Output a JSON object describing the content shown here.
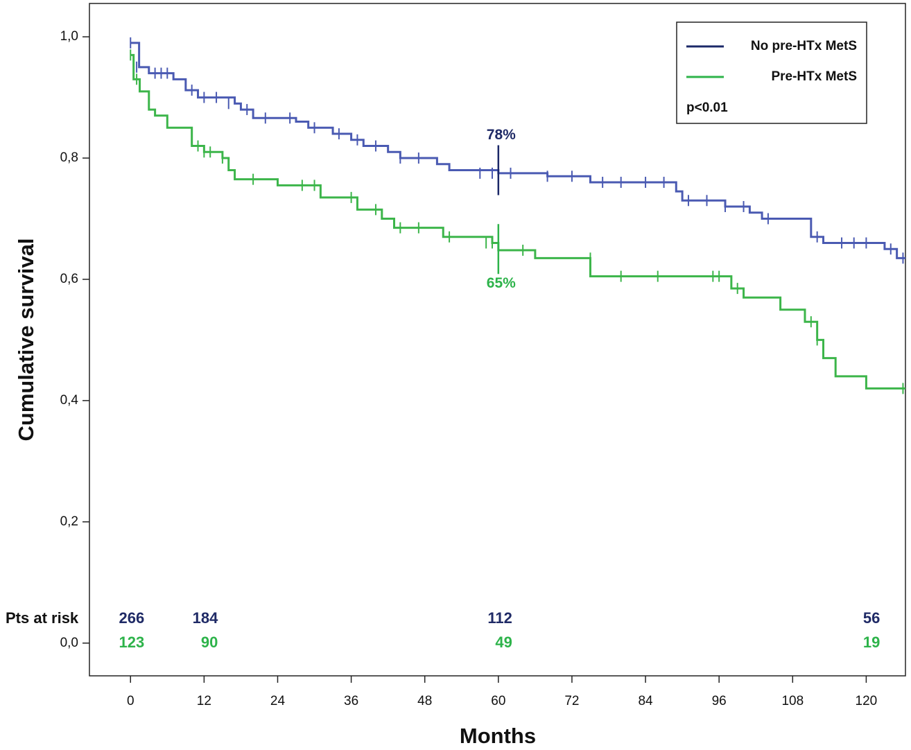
{
  "chart_data": {
    "type": "kaplan-meier",
    "x_label": "Months",
    "y_label": "Cumulative survival",
    "xlim": [
      -6.7,
      126.4
    ],
    "ylim": [
      -0.054,
      1.055
    ],
    "xticks": [
      0,
      12,
      24,
      36,
      48,
      60,
      72,
      84,
      96,
      108,
      120
    ],
    "yticks": [
      {
        "value": 0,
        "label": "0,0"
      },
      {
        "value": 0.2,
        "label": "0,2"
      },
      {
        "value": 0.4,
        "label": "0,4"
      },
      {
        "value": 0.6,
        "label": "0,6"
      },
      {
        "value": 0.8,
        "label": "0,8"
      },
      {
        "value": 1,
        "label": "1,0"
      }
    ],
    "legend": "upper right",
    "annotation": "p<0.01",
    "at_risk_label": "Pts at risk",
    "at_risk_x": [
      0,
      12,
      60,
      120
    ],
    "series": [
      {
        "name": "No pre-HTx MetS",
        "color": "#4a5ab2",
        "legend_color": "#1b2868",
        "text_color": "#1f2a66",
        "x": [
          0,
          1.4,
          3,
          7,
          9,
          11,
          17,
          18,
          20,
          27,
          29,
          33,
          36,
          38,
          42,
          44,
          50,
          52,
          60,
          68,
          75,
          89,
          90,
          97,
          101,
          103,
          111,
          113,
          123,
          125,
          126.4
        ],
        "values": [
          0.99,
          0.95,
          0.94,
          0.93,
          0.912,
          0.9,
          0.89,
          0.88,
          0.866,
          0.86,
          0.85,
          0.84,
          0.83,
          0.82,
          0.81,
          0.8,
          0.79,
          0.78,
          0.775,
          0.77,
          0.76,
          0.745,
          0.73,
          0.72,
          0.71,
          0.7,
          0.67,
          0.66,
          0.65,
          0.635,
          0.635
        ],
        "censor_x": [
          0,
          1,
          4,
          5,
          6,
          10,
          12,
          14,
          16,
          19,
          22,
          26,
          30,
          34,
          37,
          40,
          44,
          47,
          57,
          59,
          62,
          68,
          72,
          77,
          80,
          84,
          87,
          91,
          94,
          97,
          100,
          104,
          112,
          116,
          118,
          120,
          124,
          126
        ],
        "censor_y": [
          0.99,
          0.95,
          0.94,
          0.94,
          0.94,
          0.912,
          0.9,
          0.9,
          0.89,
          0.88,
          0.866,
          0.866,
          0.85,
          0.84,
          0.83,
          0.82,
          0.8,
          0.8,
          0.775,
          0.775,
          0.775,
          0.77,
          0.77,
          0.76,
          0.76,
          0.76,
          0.76,
          0.73,
          0.73,
          0.72,
          0.72,
          0.7,
          0.67,
          0.66,
          0.66,
          0.66,
          0.65,
          0.635
        ],
        "landmark": {
          "x": 60,
          "value": 0.78,
          "label": "78%"
        },
        "at_risk": [
          266,
          184,
          112,
          56
        ]
      },
      {
        "name": "Pre-HTx MetS",
        "color": "#3cb54a",
        "legend_color": "#2db34a",
        "text_color": "#2db34a",
        "x": [
          0,
          0.5,
          1.5,
          3,
          4,
          6,
          10,
          12,
          15,
          16,
          17,
          24,
          31,
          37,
          41,
          43,
          51,
          59,
          60,
          66,
          75,
          98,
          100,
          106,
          110,
          112,
          113,
          115,
          120,
          126.4
        ],
        "values": [
          0.97,
          0.93,
          0.91,
          0.88,
          0.87,
          0.85,
          0.82,
          0.81,
          0.8,
          0.78,
          0.765,
          0.755,
          0.735,
          0.715,
          0.7,
          0.685,
          0.67,
          0.66,
          0.648,
          0.635,
          0.605,
          0.585,
          0.57,
          0.55,
          0.53,
          0.5,
          0.47,
          0.44,
          0.42,
          0.42
        ],
        "censor_x": [
          0,
          1,
          11,
          12,
          13,
          15,
          20,
          28,
          30,
          36,
          40,
          44,
          47,
          52,
          58,
          59,
          64,
          75,
          80,
          86,
          95,
          96,
          99,
          111,
          112,
          126
        ],
        "censor_y": [
          0.97,
          0.93,
          0.82,
          0.81,
          0.81,
          0.8,
          0.765,
          0.755,
          0.755,
          0.735,
          0.715,
          0.685,
          0.685,
          0.67,
          0.66,
          0.66,
          0.648,
          0.635,
          0.605,
          0.605,
          0.605,
          0.605,
          0.585,
          0.53,
          0.5,
          0.42
        ],
        "landmark": {
          "x": 60,
          "value": 0.65,
          "label": "65%"
        },
        "at_risk": [
          123,
          90,
          49,
          19
        ]
      }
    ]
  }
}
